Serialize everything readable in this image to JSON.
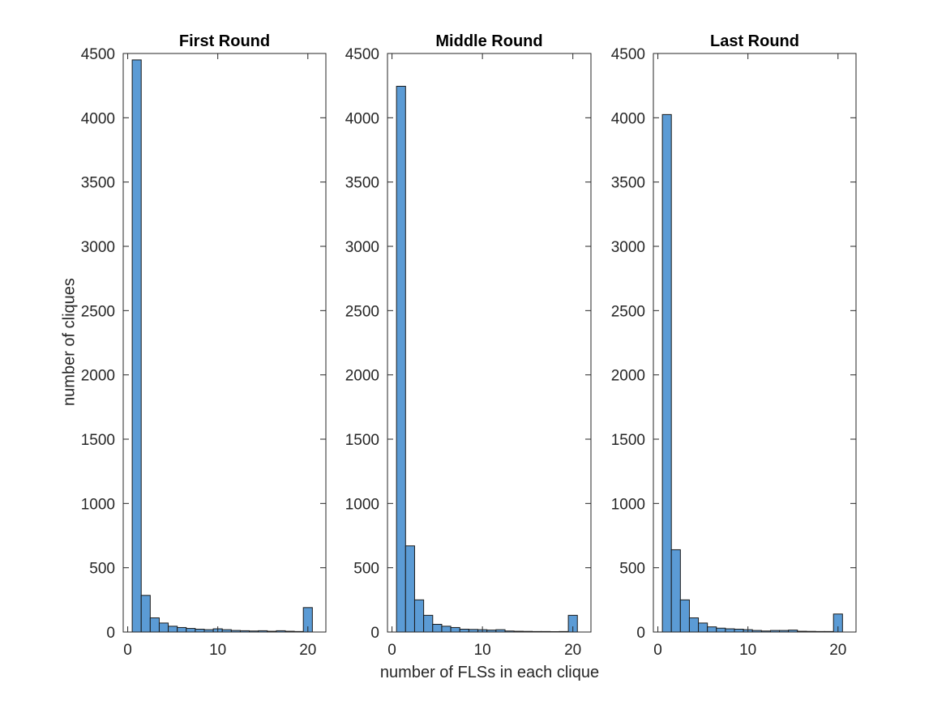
{
  "chart_data": [
    {
      "type": "bar",
      "title": "First Round",
      "ylabel": "number of cliques",
      "xlabel": "",
      "bin_edges": [
        0.5,
        1.5,
        2.5,
        3.5,
        4.5,
        5.5,
        6.5,
        7.5,
        8.5,
        9.5,
        10.5,
        11.5,
        12.5,
        13.5,
        14.5,
        15.5,
        16.5,
        17.5,
        18.5,
        19.5,
        20.5
      ],
      "values": [
        4450,
        285,
        110,
        70,
        45,
        35,
        28,
        22,
        18,
        25,
        18,
        12,
        10,
        8,
        10,
        6,
        10,
        6,
        4,
        190
      ],
      "xlim": [
        -0.5,
        22
      ],
      "ylim": [
        0,
        4500
      ],
      "xticks": [
        "0",
        "10",
        "20"
      ],
      "yticks": [
        "0",
        "500",
        "1000",
        "1500",
        "2000",
        "2500",
        "3000",
        "3500",
        "4000",
        "4500"
      ],
      "bar_color": "#5b9bd5"
    },
    {
      "type": "bar",
      "title": "Middle Round",
      "ylabel": "",
      "xlabel": "number of FLSs in each clique",
      "bin_edges": [
        0.5,
        1.5,
        2.5,
        3.5,
        4.5,
        5.5,
        6.5,
        7.5,
        8.5,
        9.5,
        10.5,
        11.5,
        12.5,
        13.5,
        14.5,
        15.5,
        16.5,
        17.5,
        18.5,
        19.5,
        20.5
      ],
      "values": [
        4245,
        670,
        250,
        130,
        60,
        45,
        35,
        22,
        20,
        18,
        15,
        18,
        8,
        6,
        5,
        4,
        4,
        3,
        4,
        130
      ],
      "xlim": [
        -0.5,
        22
      ],
      "ylim": [
        0,
        4500
      ],
      "xticks": [
        "0",
        "10",
        "20"
      ],
      "yticks": [
        "0",
        "500",
        "1000",
        "1500",
        "2000",
        "2500",
        "3000",
        "3500",
        "4000",
        "4500"
      ],
      "bar_color": "#5b9bd5"
    },
    {
      "type": "bar",
      "title": "Last Round",
      "ylabel": "",
      "xlabel": "",
      "bin_edges": [
        0.5,
        1.5,
        2.5,
        3.5,
        4.5,
        5.5,
        6.5,
        7.5,
        8.5,
        9.5,
        10.5,
        11.5,
        12.5,
        13.5,
        14.5,
        15.5,
        16.5,
        17.5,
        18.5,
        19.5,
        20.5
      ],
      "values": [
        4025,
        640,
        250,
        110,
        70,
        40,
        30,
        25,
        22,
        18,
        12,
        8,
        12,
        12,
        15,
        6,
        5,
        4,
        4,
        140
      ],
      "xlim": [
        -0.5,
        22
      ],
      "ylim": [
        0,
        4500
      ],
      "xticks": [
        "0",
        "10",
        "20"
      ],
      "yticks": [
        "0",
        "500",
        "1000",
        "1500",
        "2000",
        "2500",
        "3000",
        "3500",
        "4000",
        "4500"
      ],
      "bar_color": "#5b9bd5"
    }
  ]
}
